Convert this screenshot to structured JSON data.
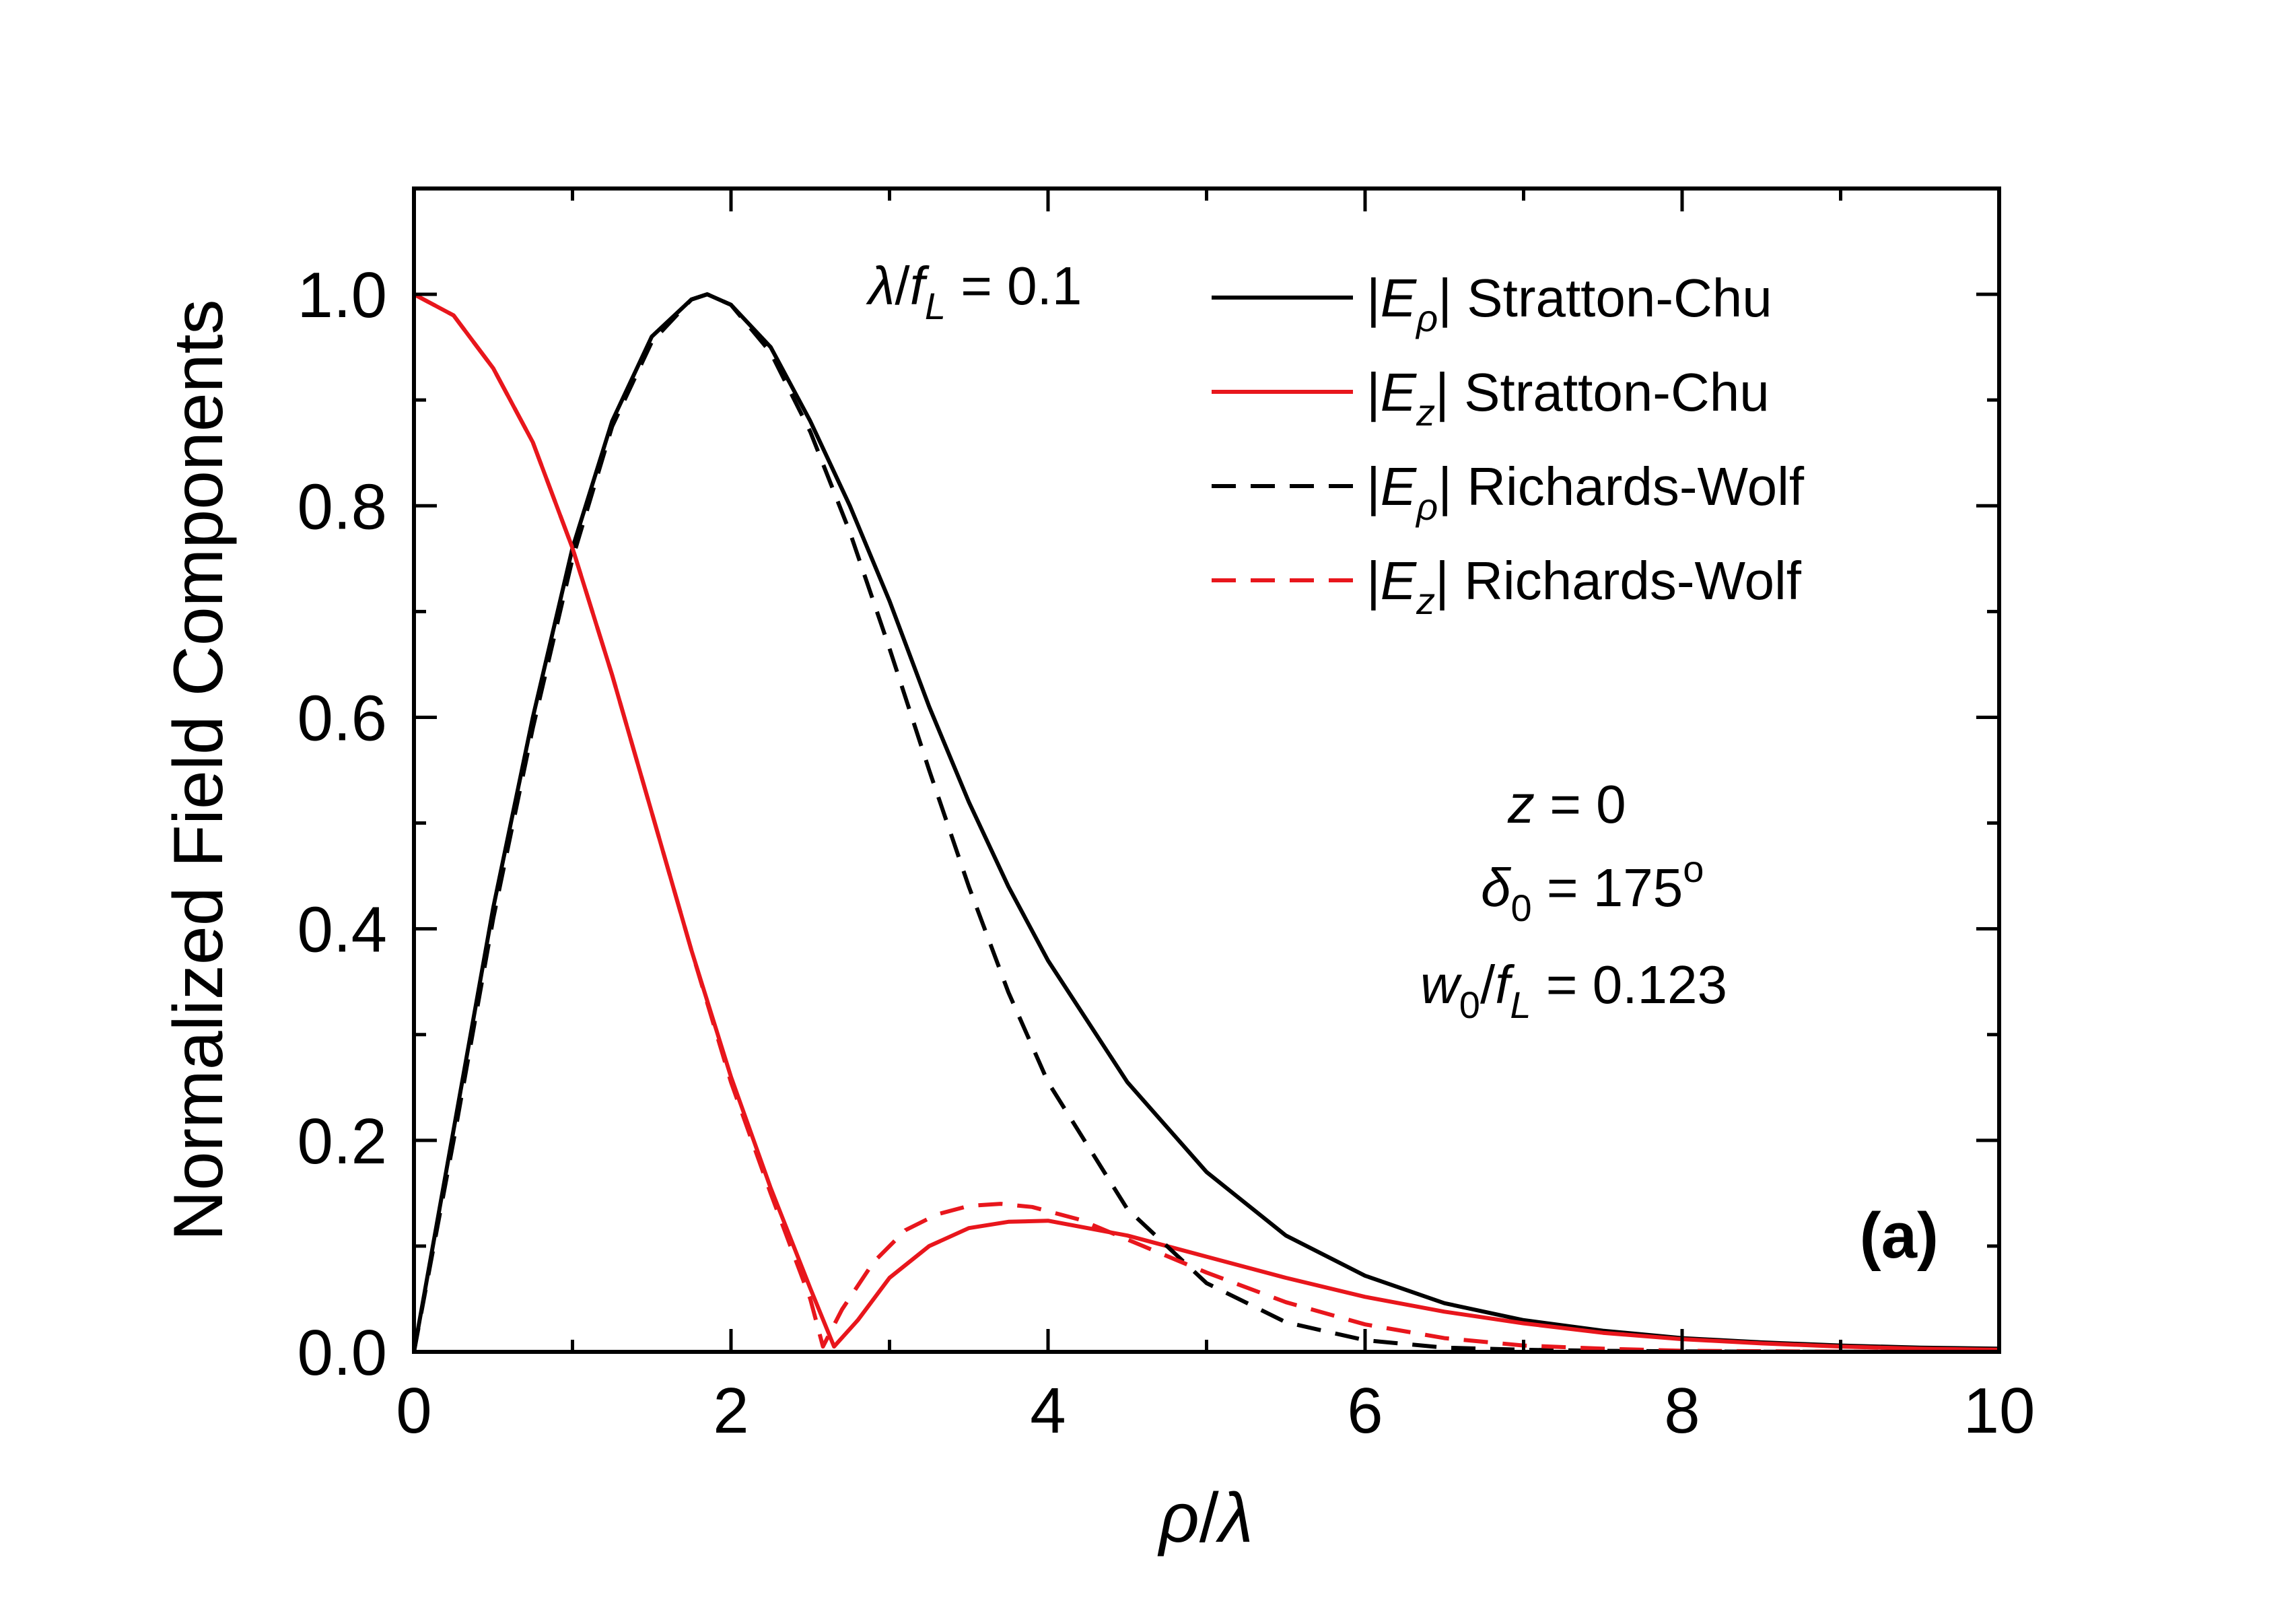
{
  "chart_data": {
    "type": "line",
    "title": "",
    "panel_label": "(a)",
    "xlabel": {
      "main": "ρ",
      "sep": "/",
      "den": "λ"
    },
    "ylabel": "Normalized Field Components",
    "xlim": [
      0,
      10
    ],
    "ylim": [
      0,
      1.1
    ],
    "xticks": [
      0,
      2,
      4,
      6,
      8,
      10
    ],
    "xtick_labels": [
      "0",
      "2",
      "4",
      "6",
      "8",
      "10"
    ],
    "yticks": [
      0.0,
      0.2,
      0.4,
      0.6,
      0.8,
      1.0
    ],
    "ytick_labels": [
      "0.0",
      "0.2",
      "0.4",
      "0.6",
      "0.8",
      "1.0"
    ],
    "grid": false,
    "legend_position": "top-right",
    "colors": {
      "black": "#000000",
      "red": "#e8161c"
    },
    "series": [
      {
        "name": "|Eρ| Stratton-Chu",
        "legend": {
          "pre": "|",
          "sym": "E",
          "sub": "ρ",
          "post": "| Stratton-Chu"
        },
        "color": "#000000",
        "dash": "solid",
        "x": [
          0,
          0.25,
          0.5,
          0.75,
          1.0,
          1.25,
          1.5,
          1.75,
          1.85,
          2.0,
          2.25,
          2.5,
          2.75,
          3.0,
          3.25,
          3.5,
          3.75,
          4.0,
          4.5,
          5.0,
          5.5,
          6.0,
          6.5,
          7.0,
          7.5,
          8.0,
          8.5,
          9.0,
          9.5,
          10.0
        ],
        "y": [
          0,
          0.21,
          0.42,
          0.6,
          0.76,
          0.88,
          0.96,
          0.995,
          1.0,
          0.99,
          0.95,
          0.88,
          0.8,
          0.71,
          0.61,
          0.52,
          0.44,
          0.37,
          0.255,
          0.17,
          0.11,
          0.072,
          0.046,
          0.03,
          0.02,
          0.013,
          0.009,
          0.006,
          0.004,
          0.003
        ]
      },
      {
        "name": "|Ez| Stratton-Chu",
        "legend": {
          "pre": "|",
          "sym": "E",
          "sub": "z",
          "post": "| Stratton-Chu"
        },
        "color": "#e8161c",
        "dash": "solid",
        "x": [
          0,
          0.25,
          0.5,
          0.75,
          1.0,
          1.25,
          1.5,
          1.75,
          2.0,
          2.25,
          2.5,
          2.65,
          2.8,
          3.0,
          3.25,
          3.5,
          3.75,
          4.0,
          4.5,
          5.0,
          5.5,
          6.0,
          6.5,
          7.0,
          7.5,
          8.0,
          8.5,
          9.0,
          9.5,
          10.0
        ],
        "y": [
          1.0,
          0.98,
          0.93,
          0.86,
          0.76,
          0.64,
          0.51,
          0.38,
          0.26,
          0.155,
          0.06,
          0.005,
          0.03,
          0.07,
          0.1,
          0.117,
          0.123,
          0.124,
          0.11,
          0.09,
          0.07,
          0.052,
          0.038,
          0.027,
          0.018,
          0.012,
          0.008,
          0.005,
          0.003,
          0.002
        ]
      },
      {
        "name": "|Eρ| Richards-Wolf",
        "legend": {
          "pre": "|",
          "sym": "E",
          "sub": "ρ",
          "post": "| Richards-Wolf"
        },
        "color": "#000000",
        "dash": "dashed",
        "x": [
          0,
          0.25,
          0.5,
          0.75,
          1.0,
          1.25,
          1.5,
          1.75,
          1.85,
          2.0,
          2.25,
          2.5,
          2.75,
          3.0,
          3.25,
          3.5,
          3.75,
          4.0,
          4.5,
          5.0,
          5.5,
          6.0,
          6.5,
          7.0,
          7.5,
          8.0,
          8.5,
          9.0,
          9.5,
          10.0
        ],
        "y": [
          0,
          0.2,
          0.41,
          0.59,
          0.75,
          0.875,
          0.955,
          0.995,
          1.0,
          0.99,
          0.945,
          0.87,
          0.775,
          0.665,
          0.55,
          0.44,
          0.34,
          0.255,
          0.135,
          0.065,
          0.028,
          0.011,
          0.004,
          0.002,
          0.001,
          0.0005,
          0.0002,
          0.0001,
          0,
          0
        ]
      },
      {
        "name": "|Ez| Richards-Wolf",
        "legend": {
          "pre": "|",
          "sym": "E",
          "sub": "z",
          "post": "| Richards-Wolf"
        },
        "color": "#e8161c",
        "dash": "dashed",
        "x": [
          0,
          0.25,
          0.5,
          0.75,
          1.0,
          1.25,
          1.5,
          1.75,
          2.0,
          2.25,
          2.5,
          2.58,
          2.7,
          2.9,
          3.1,
          3.3,
          3.5,
          3.7,
          3.9,
          4.2,
          4.6,
          5.0,
          5.5,
          6.0,
          6.5,
          7.0,
          7.5,
          8.0,
          9.0,
          10.0
        ],
        "y": [
          1.0,
          0.98,
          0.93,
          0.86,
          0.76,
          0.64,
          0.51,
          0.38,
          0.255,
          0.15,
          0.05,
          0.005,
          0.04,
          0.085,
          0.115,
          0.13,
          0.138,
          0.14,
          0.137,
          0.125,
          0.1,
          0.075,
          0.047,
          0.026,
          0.013,
          0.006,
          0.003,
          0.001,
          0.0002,
          0
        ]
      }
    ],
    "annotations": {
      "lambda_fl": {
        "sym": "λ",
        "sep": "/",
        "f": "f",
        "sub": "L",
        "rest": " = 0.1"
      },
      "z": {
        "sym": "z",
        "rest": " = 0"
      },
      "delta0": {
        "sym": "δ",
        "sub": "0",
        "rest": " = 175",
        "sup": "o"
      },
      "w0_fl": {
        "sym": "w",
        "sub": "0",
        "sep": "/",
        "f": "f",
        "sub2": "L",
        "rest": " = 0.123"
      }
    }
  }
}
